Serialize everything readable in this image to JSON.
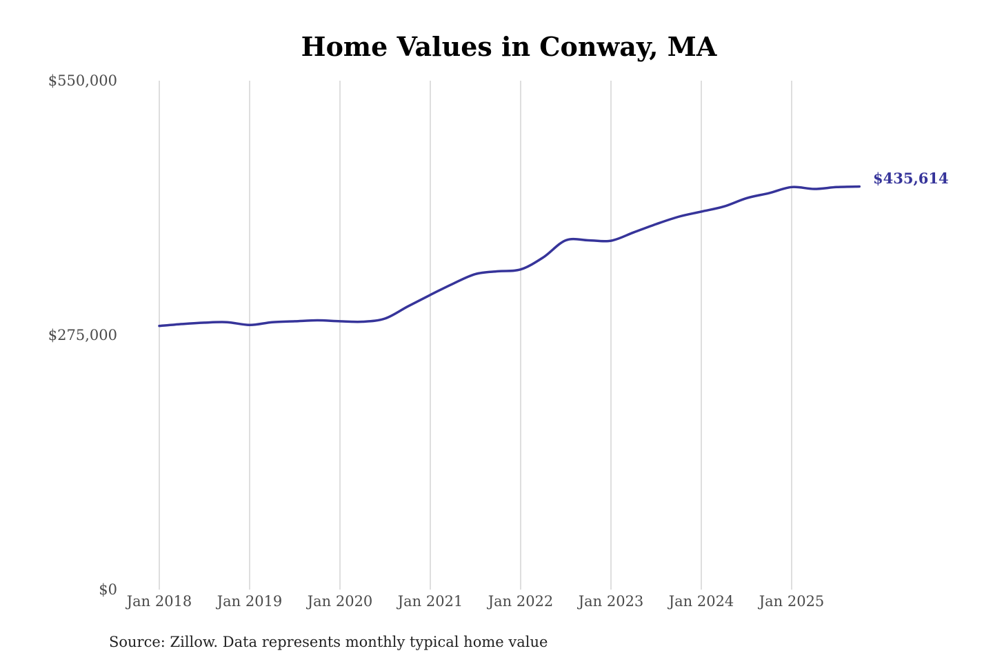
{
  "chart_data": {
    "type": "line",
    "title": "Home Values in Conway, MA",
    "xlabel": "",
    "ylabel": "",
    "x_ticks": [
      "Jan 2018",
      "Jan 2019",
      "Jan 2020",
      "Jan 2021",
      "Jan 2022",
      "Jan 2023",
      "Jan 2024",
      "Jan 2025"
    ],
    "y_ticks": [
      {
        "value": 550000,
        "label": "$550,000"
      },
      {
        "value": 275000,
        "label": "$275,000"
      },
      {
        "value": 0,
        "label": "$0"
      }
    ],
    "ylim": [
      0,
      550000
    ],
    "xlim": [
      "2018-01",
      "2025-10"
    ],
    "grid": {
      "vertical": true,
      "horizontal": false
    },
    "legend": "none",
    "line_color": "#36349a",
    "end_label": "$435,614",
    "source": "Source: Zillow. Data represents monthly typical home value",
    "series": [
      {
        "points": [
          {
            "x": "2018-01",
            "y": 285000
          },
          {
            "x": "2018-04",
            "y": 287000
          },
          {
            "x": "2018-07",
            "y": 288500
          },
          {
            "x": "2018-10",
            "y": 289000
          },
          {
            "x": "2019-01",
            "y": 286000
          },
          {
            "x": "2019-04",
            "y": 289000
          },
          {
            "x": "2019-07",
            "y": 290000
          },
          {
            "x": "2019-10",
            "y": 291000
          },
          {
            "x": "2020-01",
            "y": 290000
          },
          {
            "x": "2020-04",
            "y": 289500
          },
          {
            "x": "2020-07",
            "y": 293000
          },
          {
            "x": "2020-10",
            "y": 306000
          },
          {
            "x": "2021-01",
            "y": 318500
          },
          {
            "x": "2021-04",
            "y": 330500
          },
          {
            "x": "2021-07",
            "y": 341000
          },
          {
            "x": "2021-10",
            "y": 344000
          },
          {
            "x": "2022-01",
            "y": 346000
          },
          {
            "x": "2022-04",
            "y": 359000
          },
          {
            "x": "2022-07",
            "y": 377500
          },
          {
            "x": "2022-10",
            "y": 377500
          },
          {
            "x": "2023-01",
            "y": 377000
          },
          {
            "x": "2023-04",
            "y": 386000
          },
          {
            "x": "2023-07",
            "y": 395000
          },
          {
            "x": "2023-10",
            "y": 403000
          },
          {
            "x": "2024-01",
            "y": 408500
          },
          {
            "x": "2024-04",
            "y": 414000
          },
          {
            "x": "2024-07",
            "y": 423000
          },
          {
            "x": "2024-10",
            "y": 428500
          },
          {
            "x": "2025-01",
            "y": 435000
          },
          {
            "x": "2025-04",
            "y": 433000
          },
          {
            "x": "2025-07",
            "y": 435000
          },
          {
            "x": "2025-10",
            "y": 435614
          }
        ]
      }
    ]
  }
}
